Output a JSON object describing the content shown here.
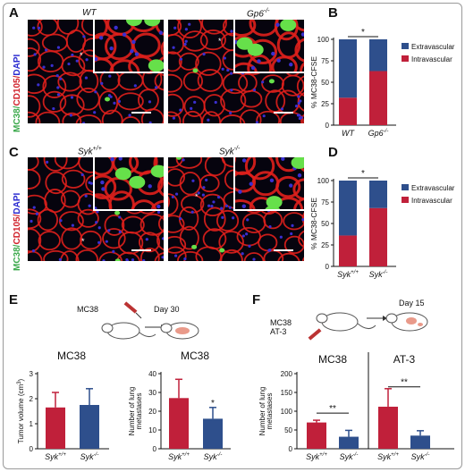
{
  "panels": {
    "A": {
      "label": "A",
      "left_title": "WT",
      "right_title_base": "Gp6",
      "right_title_sup": "-/-"
    },
    "B": {
      "label": "B"
    },
    "C": {
      "label": "C",
      "left_title_base": "Syk",
      "left_title_sup": "+/+",
      "right_title_base": "Syk",
      "right_title_sup": "-/-"
    },
    "D": {
      "label": "D"
    },
    "E": {
      "label": "E",
      "day_label": "Day 30",
      "model_label": "MC38"
    },
    "F": {
      "label": "F",
      "day_label": "Day 15",
      "model_label_1": "MC38",
      "model_label_2": "AT-3"
    }
  },
  "stain_label": {
    "green": "MC38",
    "red": "CD105",
    "blue": "DAPI",
    "sep": "/",
    "green_c": "CD105"
  },
  "stain_label_C": {
    "green": "MC38",
    "red": "CD105",
    "blue": "DAPI",
    "sep": "/"
  },
  "inset_star": "*",
  "colors": {
    "extravascular": "#2e4f8c",
    "intravascular": "#c0203a",
    "bar_red": "#c0203a",
    "bar_blue": "#2e4f8c",
    "vessel_red": "#e0201c",
    "nuclei_blue": "#3a2fd0",
    "cell_green": "#66e04a"
  },
  "chart_data": [
    {
      "id": "B",
      "type": "bar",
      "stacked": true,
      "categories": [
        "WT",
        "Gp6-/-"
      ],
      "category_tex": [
        {
          "base": "WT",
          "sup": ""
        },
        {
          "base": "Gp6",
          "sup": "-/-"
        }
      ],
      "series": [
        {
          "name": "Intravascular",
          "values": [
            32,
            63
          ]
        },
        {
          "name": "Extravascular",
          "values": [
            68,
            37
          ]
        }
      ],
      "ylabel": "% MC38-CFSE",
      "ylim": [
        0,
        100
      ],
      "yticks": [
        0,
        25,
        50,
        75,
        100
      ],
      "significance": "*",
      "legend": "right"
    },
    {
      "id": "D",
      "type": "bar",
      "stacked": true,
      "categories": [
        "Syk+/+",
        "Syk-/-"
      ],
      "category_tex": [
        {
          "base": "Syk",
          "sup": "+/+"
        },
        {
          "base": "Syk",
          "sup": "-/-"
        }
      ],
      "series": [
        {
          "name": "Intravascular",
          "values": [
            36,
            68
          ]
        },
        {
          "name": "Extravascular",
          "values": [
            64,
            32
          ]
        }
      ],
      "ylabel": "% MC38-CFSE",
      "ylim": [
        0,
        100
      ],
      "yticks": [
        0,
        25,
        50,
        75,
        100
      ],
      "significance": "*",
      "legend": "right"
    },
    {
      "id": "E1",
      "type": "bar",
      "title": "MC38",
      "categories": [
        "Syk+/+",
        "Syk-/-"
      ],
      "category_tex": [
        {
          "base": "Syk",
          "sup": "+/+"
        },
        {
          "base": "Syk",
          "sup": "-/-"
        }
      ],
      "values": [
        1.65,
        1.75
      ],
      "errors": [
        0.6,
        0.65
      ],
      "ylabel": "Tumor volume (cm3)",
      "ylabel_base": "Tumor volume (cm",
      "ylabel_sup": "3",
      "ylabel_end": ")",
      "ylim": [
        0,
        3
      ],
      "yticks": [
        0,
        1,
        2,
        3
      ]
    },
    {
      "id": "E2",
      "type": "bar",
      "title": "MC38",
      "categories": [
        "Syk+/+",
        "Syk-/-"
      ],
      "category_tex": [
        {
          "base": "Syk",
          "sup": "+/+"
        },
        {
          "base": "Syk",
          "sup": "-/-"
        }
      ],
      "values": [
        27,
        16
      ],
      "errors": [
        10,
        6
      ],
      "ylabel": "Number of lung metastases",
      "ylabel_line1": "Number of lung",
      "ylabel_line2": "metastases",
      "ylim": [
        0,
        40
      ],
      "yticks": [
        0,
        10,
        20,
        30,
        40
      ],
      "significance": "*"
    },
    {
      "id": "F",
      "type": "bar",
      "groups": [
        "MC38",
        "AT-3"
      ],
      "categories": [
        "Syk+/+",
        "Syk-/-",
        "Syk+/+",
        "Syk-/-"
      ],
      "category_tex": [
        {
          "base": "Syk",
          "sup": "+/+"
        },
        {
          "base": "Syk",
          "sup": "-/-"
        },
        {
          "base": "Syk",
          "sup": "+/+"
        },
        {
          "base": "Syk",
          "sup": "-/-"
        }
      ],
      "values": [
        70,
        32,
        112,
        35
      ],
      "errors": [
        6,
        17,
        48,
        13
      ],
      "ylabel": "Number of lung metastases",
      "ylabel_line1": "Number of lung",
      "ylabel_line2": "metastases",
      "ylim": [
        0,
        200
      ],
      "yticks": [
        0,
        50,
        100,
        150,
        200
      ],
      "significance": [
        "**",
        "**"
      ]
    }
  ]
}
